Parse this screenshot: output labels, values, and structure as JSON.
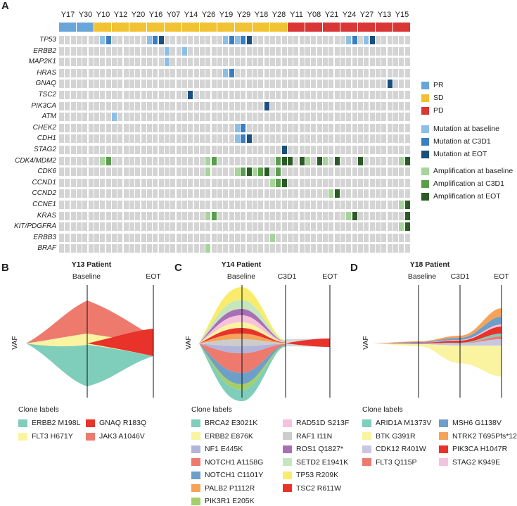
{
  "panels": {
    "a": "A",
    "b": "B",
    "c": "C",
    "d": "D"
  },
  "patients": [
    "Y17",
    "Y30",
    "Y10",
    "Y12",
    "Y20",
    "Y16",
    "Y07",
    "Y14",
    "Y26",
    "Y19",
    "Y29",
    "Y18",
    "Y28",
    "Y11",
    "Y08",
    "Y21",
    "Y24",
    "Y27",
    "Y13",
    "Y15"
  ],
  "response": [
    "PR",
    "PR",
    "SD",
    "SD",
    "SD",
    "SD",
    "SD",
    "SD",
    "SD",
    "SD",
    "SD",
    "SD",
    "SD",
    "PD",
    "PD",
    "PD",
    "PD",
    "PD",
    "PD",
    "PD"
  ],
  "genes": [
    "TP53",
    "ERBB2",
    "MAP2K1",
    "HRAS",
    "GNAQ",
    "TSC2",
    "PIK3CA",
    "ATM",
    "CHEK2",
    "CDH1",
    "STAG2",
    "CDK4/MDM2",
    "CDK6",
    "CCND1",
    "CCND2",
    "CCNE1",
    "KRAS",
    "KIT/PDGFRA",
    "ERBB3",
    "BRAF"
  ],
  "colors": {
    "PR": "#6aa5d8",
    "SD": "#f1c232",
    "PD": "#d93636",
    "grey": "#d4d4d4",
    "mut_b": "#8dbfe6",
    "mut_c": "#3a7fc2",
    "mut_e": "#1a4f7e",
    "amp_b": "#a6d49b",
    "amp_c": "#5a9e4c",
    "amp_e": "#2c5a26"
  },
  "alterations": [
    {
      "g": 0,
      "p": 2,
      "t": 1,
      "k": "mut_b"
    },
    {
      "g": 0,
      "p": 2,
      "t": 2,
      "k": "mut_c"
    },
    {
      "g": 0,
      "p": 5,
      "t": 0,
      "k": "mut_b"
    },
    {
      "g": 0,
      "p": 5,
      "t": 1,
      "k": "mut_c"
    },
    {
      "g": 0,
      "p": 5,
      "t": 2,
      "k": "mut_e"
    },
    {
      "g": 0,
      "p": 9,
      "t": 1,
      "k": "mut_b"
    },
    {
      "g": 0,
      "p": 9,
      "t": 2,
      "k": "mut_c"
    },
    {
      "g": 0,
      "p": 10,
      "t": 0,
      "k": "mut_b"
    },
    {
      "g": 0,
      "p": 10,
      "t": 1,
      "k": "mut_c"
    },
    {
      "g": 0,
      "p": 10,
      "t": 2,
      "k": "mut_e"
    },
    {
      "g": 0,
      "p": 16,
      "t": 1,
      "k": "mut_b"
    },
    {
      "g": 0,
      "p": 16,
      "t": 2,
      "k": "mut_c"
    },
    {
      "g": 0,
      "p": 17,
      "t": 1,
      "k": "mut_b"
    },
    {
      "g": 0,
      "p": 17,
      "t": 2,
      "k": "mut_e"
    },
    {
      "g": 1,
      "p": 6,
      "t": 0,
      "k": "mut_b"
    },
    {
      "g": 1,
      "p": 7,
      "t": 0,
      "k": "mut_b"
    },
    {
      "g": 2,
      "p": 6,
      "t": 0,
      "k": "mut_b"
    },
    {
      "g": 3,
      "p": 9,
      "t": 1,
      "k": "mut_b"
    },
    {
      "g": 3,
      "p": 9,
      "t": 2,
      "k": "mut_c"
    },
    {
      "g": 4,
      "p": 18,
      "t": 2,
      "k": "mut_e"
    },
    {
      "g": 5,
      "p": 7,
      "t": 1,
      "k": "mut_e"
    },
    {
      "g": 6,
      "p": 11,
      "t": 2,
      "k": "mut_e"
    },
    {
      "g": 7,
      "p": 3,
      "t": 0,
      "k": "mut_b"
    },
    {
      "g": 8,
      "p": 10,
      "t": 0,
      "k": "mut_b"
    },
    {
      "g": 8,
      "p": 10,
      "t": 1,
      "k": "mut_c"
    },
    {
      "g": 9,
      "p": 10,
      "t": 0,
      "k": "mut_b"
    },
    {
      "g": 9,
      "p": 10,
      "t": 1,
      "k": "mut_c"
    },
    {
      "g": 9,
      "p": 10,
      "t": 2,
      "k": "mut_e"
    },
    {
      "g": 10,
      "p": 12,
      "t": 2,
      "k": "mut_e"
    },
    {
      "g": 11,
      "p": 2,
      "t": 1,
      "k": "amp_b"
    },
    {
      "g": 11,
      "p": 2,
      "t": 2,
      "k": "amp_c"
    },
    {
      "g": 11,
      "p": 8,
      "t": 1,
      "k": "amp_b"
    },
    {
      "g": 11,
      "p": 8,
      "t": 2,
      "k": "amp_c"
    },
    {
      "g": 11,
      "p": 12,
      "t": 1,
      "k": "amp_c"
    },
    {
      "g": 11,
      "p": 12,
      "t": 2,
      "k": "amp_e"
    },
    {
      "g": 11,
      "p": 13,
      "t": 0,
      "k": "amp_e"
    },
    {
      "g": 11,
      "p": 13,
      "t": 2,
      "k": "amp_e"
    },
    {
      "g": 11,
      "p": 14,
      "t": 0,
      "k": "amp_b"
    },
    {
      "g": 11,
      "p": 14,
      "t": 2,
      "k": "amp_e"
    },
    {
      "g": 11,
      "p": 15,
      "t": 0,
      "k": "amp_b"
    },
    {
      "g": 11,
      "p": 15,
      "t": 2,
      "k": "amp_e"
    },
    {
      "g": 11,
      "p": 17,
      "t": 0,
      "k": "amp_e"
    },
    {
      "g": 11,
      "p": 19,
      "t": 1,
      "k": "amp_b"
    },
    {
      "g": 11,
      "p": 19,
      "t": 2,
      "k": "amp_e"
    },
    {
      "g": 12,
      "p": 8,
      "t": 1,
      "k": "amp_b"
    },
    {
      "g": 12,
      "p": 10,
      "t": 0,
      "k": "amp_b"
    },
    {
      "g": 12,
      "p": 10,
      "t": 1,
      "k": "amp_c"
    },
    {
      "g": 12,
      "p": 10,
      "t": 2,
      "k": "amp_e"
    },
    {
      "g": 12,
      "p": 11,
      "t": 0,
      "k": "amp_b"
    },
    {
      "g": 12,
      "p": 11,
      "t": 1,
      "k": "amp_c"
    },
    {
      "g": 12,
      "p": 11,
      "t": 2,
      "k": "amp_e"
    },
    {
      "g": 12,
      "p": 12,
      "t": 1,
      "k": "amp_c"
    },
    {
      "g": 13,
      "p": 12,
      "t": 0,
      "k": "amp_b"
    },
    {
      "g": 13,
      "p": 12,
      "t": 1,
      "k": "amp_c"
    },
    {
      "g": 13,
      "p": 12,
      "t": 2,
      "k": "amp_e"
    },
    {
      "g": 14,
      "p": 15,
      "t": 1,
      "k": "amp_b"
    },
    {
      "g": 14,
      "p": 15,
      "t": 2,
      "k": "amp_e"
    },
    {
      "g": 15,
      "p": 19,
      "t": 1,
      "k": "amp_b"
    },
    {
      "g": 15,
      "p": 19,
      "t": 2,
      "k": "amp_e"
    },
    {
      "g": 16,
      "p": 8,
      "t": 1,
      "k": "amp_b"
    },
    {
      "g": 16,
      "p": 8,
      "t": 2,
      "k": "amp_c"
    },
    {
      "g": 16,
      "p": 16,
      "t": 1,
      "k": "amp_b"
    },
    {
      "g": 16,
      "p": 16,
      "t": 2,
      "k": "amp_e"
    },
    {
      "g": 16,
      "p": 19,
      "t": 2,
      "k": "amp_e"
    },
    {
      "g": 17,
      "p": 19,
      "t": 1,
      "k": "amp_b"
    },
    {
      "g": 17,
      "p": 19,
      "t": 2,
      "k": "amp_e"
    },
    {
      "g": 18,
      "p": 12,
      "t": 0,
      "k": "amp_b"
    },
    {
      "g": 19,
      "p": 8,
      "t": 1,
      "k": "amp_b"
    }
  ],
  "legendA": [
    {
      "label": "PR",
      "k": "PR"
    },
    {
      "label": "SD",
      "k": "SD"
    },
    {
      "label": "PD",
      "k": "PD"
    },
    {
      "label": "Mutation at baseline",
      "k": "mut_b"
    },
    {
      "label": "Mutation at C3D1",
      "k": "mut_c"
    },
    {
      "label": "Mutation at EOT",
      "k": "mut_e"
    },
    {
      "label": "Amplification at baseline",
      "k": "amp_b"
    },
    {
      "label": "Amplification at C3D1",
      "k": "amp_c"
    },
    {
      "label": "Amplification at EOT",
      "k": "amp_e"
    }
  ],
  "fishB": {
    "title": "Y13 Patient",
    "timepoints": [
      "Baseline",
      "EOT"
    ],
    "ylabel": "VAF",
    "legend_title": "Clone labels",
    "clones": [
      {
        "label": "ERBB2 M198L",
        "color": "#7fcdbb"
      },
      {
        "label": "GNAQ R183Q",
        "color": "#e8322a"
      },
      {
        "label": "FLT3 H671Y",
        "color": "#faf3a0"
      },
      {
        "label": "JAK3 A1046V",
        "color": "#ee7a6e"
      }
    ]
  },
  "fishC": {
    "title": "Y14 Patient",
    "timepoints": [
      "Baseline",
      "C3D1",
      "EOT"
    ],
    "ylabel": "VAF",
    "legend_title": "Clone labels",
    "clones": [
      {
        "label": "BRCA2 E3021K",
        "color": "#7fcdbb"
      },
      {
        "label": "RAD51D S213F",
        "color": "#f6c2dc"
      },
      {
        "label": "ERBB2 E876K",
        "color": "#faf3a0"
      },
      {
        "label": "RAF1 I11N",
        "color": "#cccccc"
      },
      {
        "label": "NF1 E445K",
        "color": "#b3b4db"
      },
      {
        "label": "ROS1 Q1827*",
        "color": "#a86fb4"
      },
      {
        "label": "NOTCH1 A1158G",
        "color": "#ee7a6e"
      },
      {
        "label": "SETD2 E1941K",
        "color": "#c6e6be"
      },
      {
        "label": "NOTCH1 C1101Y",
        "color": "#6d9fc8"
      },
      {
        "label": "TP53 R209K",
        "color": "#f9ec6c"
      },
      {
        "label": "PALB2 P1112R",
        "color": "#f6a35a"
      },
      {
        "label": "TSC2 R611W",
        "color": "#e8322a"
      },
      {
        "label": "PIK3R1 E205K",
        "color": "#a5cf6a"
      }
    ]
  },
  "fishD": {
    "title": "Y18 Patient",
    "timepoints": [
      "Baseline",
      "C3D1",
      "EOT"
    ],
    "ylabel": "VAF",
    "legend_title": "Clone labels",
    "clones": [
      {
        "label": "ARID1A M1373V",
        "color": "#7fcdbb"
      },
      {
        "label": "MSH6 G1138V",
        "color": "#6d9fc8"
      },
      {
        "label": "BTK G391R",
        "color": "#faf3a0"
      },
      {
        "label": "NTRK2 T695Pfs*12",
        "color": "#f6a35a"
      },
      {
        "label": "CDK12 R401W",
        "color": "#c8c6e2"
      },
      {
        "label": "PIK3CA H1047R",
        "color": "#e8322a"
      },
      {
        "label": "FLT3 Q115P",
        "color": "#ee7a6e"
      },
      {
        "label": "STAG2 K949E",
        "color": "#f6c2dc"
      }
    ]
  }
}
